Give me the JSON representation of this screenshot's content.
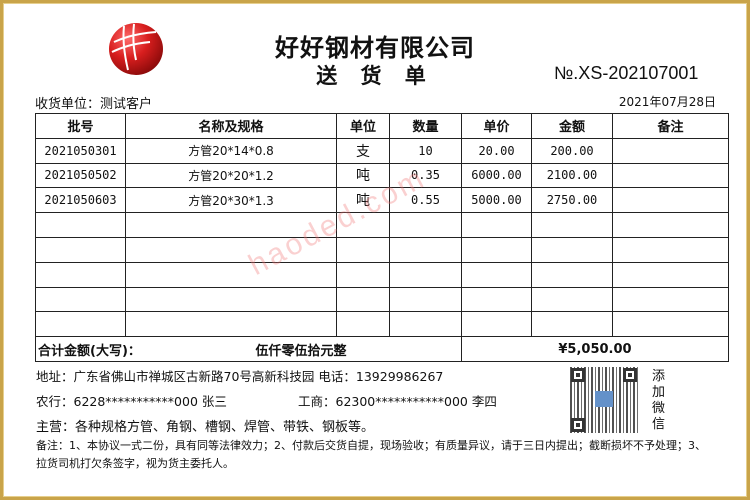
{
  "header": {
    "company": "好好钢材有限公司",
    "title": "送 货 单",
    "doc_no": "№.XS-202107001",
    "receiver": "收货单位：测试客户",
    "date": "2021年07月28日"
  },
  "table": {
    "columns": [
      "批号",
      "名称及规格",
      "单位",
      "数量",
      "单价",
      "金额",
      "备注"
    ],
    "rows": [
      [
        "2021050301",
        "方管20*14*0.8",
        "支",
        "10",
        "20.00",
        "200.00",
        ""
      ],
      [
        "2021050502",
        "方管20*20*1.2",
        "吨",
        "0.35",
        "6000.00",
        "2100.00",
        ""
      ],
      [
        "2021050603",
        "方管20*30*1.3",
        "吨",
        "0.55",
        "5000.00",
        "2750.00",
        ""
      ],
      [
        "",
        "",
        "",
        "",
        "",
        "",
        ""
      ],
      [
        "",
        "",
        "",
        "",
        "",
        "",
        ""
      ],
      [
        "",
        "",
        "",
        "",
        "",
        "",
        ""
      ],
      [
        "",
        "",
        "",
        "",
        "",
        "",
        ""
      ],
      [
        "",
        "",
        "",
        "",
        "",
        "",
        ""
      ]
    ],
    "total_label": "合计金额(大写)：",
    "total_capital": "伍仟零伍拾元整",
    "total_amount": "¥5,050.00"
  },
  "watermark": "haoded.com",
  "footer": {
    "address": "地址：广东省佛山市禅城区古新路70号高新科技园 电话：13929986267",
    "bank1": "农行：6228***********000 张三",
    "bank2": "工商：62300***********000 李四",
    "business": "主营：各种规格方管、角钢、槽钢、焊管、带铁、钢板等。",
    "note": "备注：1、本协议一式二份，具有同等法律效力；2、付款后交货自提，现场验收；有质量异议，请于三日内提出；截断损坏不予处理；3、拉货司机打欠条签字，视为货主委托人。",
    "wechat": "添加微信"
  },
  "colors": {
    "frame": "#c9a44a",
    "logo": "#d81e1e"
  }
}
